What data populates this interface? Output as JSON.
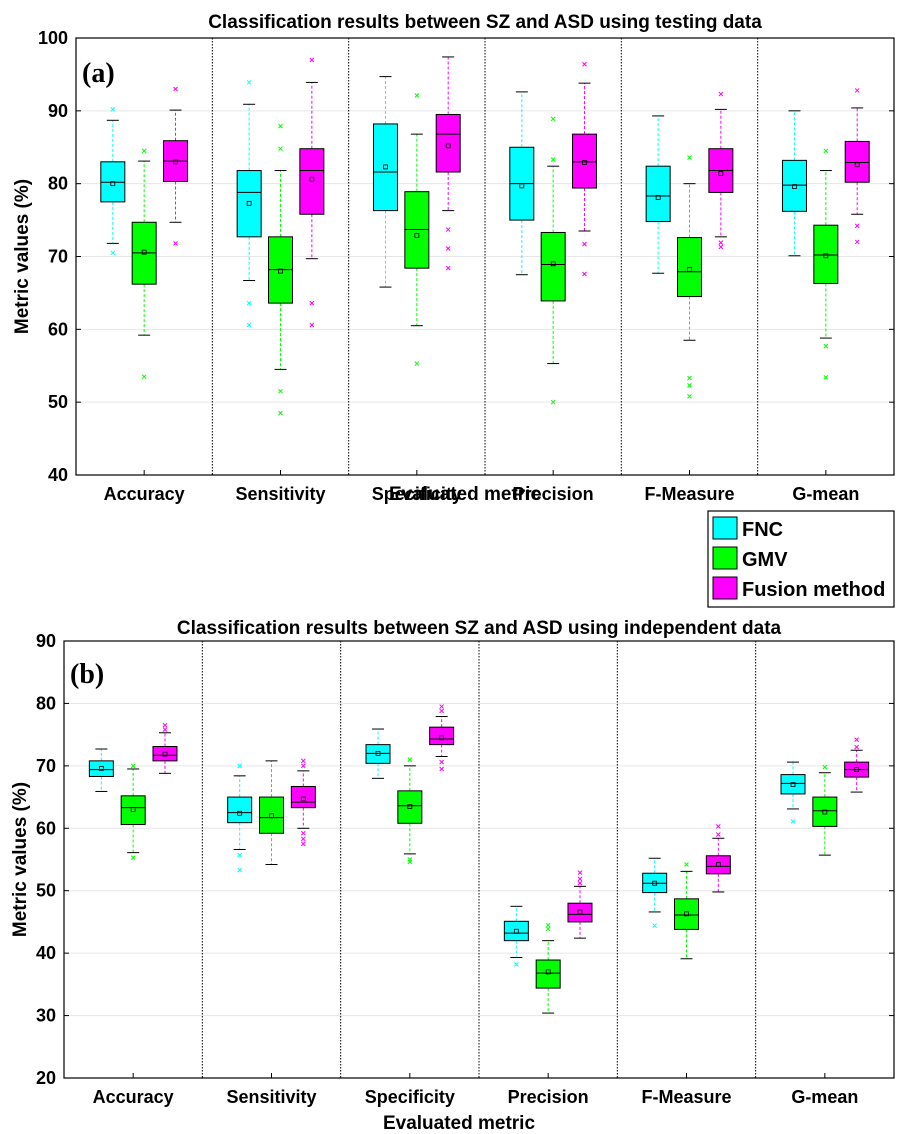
{
  "legend": {
    "entries": [
      {
        "name": "FNC",
        "color": "#00ffff"
      },
      {
        "name": "GMV",
        "color": "#00ff00"
      },
      {
        "name": "Fusion method",
        "color": "#ff00ff"
      }
    ],
    "placement": "between-panels-right"
  },
  "chart_data": [
    {
      "type": "box",
      "panel_label": "(a)",
      "title": "Classification results between SZ and ASD using testing data",
      "xlabel": "Evaluated metric",
      "ylabel": "Metric values (%)",
      "ylim": [
        40,
        100
      ],
      "yticks": [
        40,
        50,
        60,
        70,
        80,
        90,
        100
      ],
      "grid": "horizontal",
      "categories": [
        "Accuracy",
        "Sensitivity",
        "Specificity",
        "Precision",
        "F-Measure",
        "G-mean"
      ],
      "series": [
        {
          "name": "FNC",
          "color": "#00ffff",
          "boxes": [
            {
              "q1": 77.5,
              "median": 80.2,
              "q3": 83.0,
              "whisker_low": 71.8,
              "whisker_high": 88.7,
              "mean": 80.0,
              "outliers": [
                70.5,
                90.2
              ]
            },
            {
              "q1": 72.7,
              "median": 78.8,
              "q3": 81.8,
              "whisker_low": 66.7,
              "whisker_high": 90.9,
              "mean": 77.3,
              "outliers": [
                63.6,
                60.6,
                93.9
              ]
            },
            {
              "q1": 76.3,
              "median": 81.6,
              "q3": 88.2,
              "whisker_low": 65.8,
              "whisker_high": 94.7,
              "mean": 82.3,
              "outliers": []
            },
            {
              "q1": 75.0,
              "median": 80.0,
              "q3": 85.0,
              "whisker_low": 67.5,
              "whisker_high": 92.6,
              "mean": 79.7,
              "outliers": []
            },
            {
              "q1": 74.8,
              "median": 78.3,
              "q3": 82.4,
              "whisker_low": 67.7,
              "whisker_high": 89.3,
              "mean": 78.1,
              "outliers": []
            },
            {
              "q1": 76.2,
              "median": 79.8,
              "q3": 83.2,
              "whisker_low": 70.1,
              "whisker_high": 90.0,
              "mean": 79.6,
              "outliers": []
            }
          ]
        },
        {
          "name": "GMV",
          "color": "#00ff00",
          "boxes": [
            {
              "q1": 66.2,
              "median": 70.5,
              "q3": 74.7,
              "whisker_low": 59.2,
              "whisker_high": 83.1,
              "mean": 70.6,
              "outliers": [
                53.5,
                84.5
              ]
            },
            {
              "q1": 63.6,
              "median": 68.2,
              "q3": 72.7,
              "whisker_low": 54.5,
              "whisker_high": 81.8,
              "mean": 68.0,
              "outliers": [
                51.5,
                48.5,
                84.8,
                87.9
              ]
            },
            {
              "q1": 68.4,
              "median": 73.7,
              "q3": 78.9,
              "whisker_low": 60.5,
              "whisker_high": 86.8,
              "mean": 72.9,
              "outliers": [
                55.3,
                92.1
              ]
            },
            {
              "q1": 63.9,
              "median": 68.9,
              "q3": 73.3,
              "whisker_low": 55.3,
              "whisker_high": 82.4,
              "mean": 69.0,
              "outliers": [
                50.0,
                88.9,
                83.3
              ]
            },
            {
              "q1": 64.5,
              "median": 67.9,
              "q3": 72.6,
              "whisker_low": 58.5,
              "whisker_high": 80.0,
              "mean": 68.2,
              "outliers": [
                53.3,
                52.3,
                50.8,
                83.6
              ]
            },
            {
              "q1": 66.3,
              "median": 70.2,
              "q3": 74.3,
              "whisker_low": 58.8,
              "whisker_high": 81.8,
              "mean": 70.1,
              "outliers": [
                57.7,
                53.4,
                84.5
              ]
            }
          ]
        },
        {
          "name": "Fusion method",
          "color": "#ff00ff",
          "boxes": [
            {
              "q1": 80.3,
              "median": 83.1,
              "q3": 85.9,
              "whisker_low": 74.7,
              "whisker_high": 90.1,
              "mean": 83.0,
              "outliers": [
                71.8,
                93.0
              ]
            },
            {
              "q1": 75.8,
              "median": 81.8,
              "q3": 84.8,
              "whisker_low": 69.7,
              "whisker_high": 93.9,
              "mean": 80.6,
              "outliers": [
                63.6,
                60.6,
                97.0
              ]
            },
            {
              "q1": 81.6,
              "median": 86.8,
              "q3": 89.5,
              "whisker_low": 76.3,
              "whisker_high": 97.4,
              "mean": 85.2,
              "outliers": [
                73.7,
                71.1,
                68.4
              ]
            },
            {
              "q1": 79.4,
              "median": 83.0,
              "q3": 86.8,
              "whisker_low": 73.5,
              "whisker_high": 93.8,
              "mean": 82.9,
              "outliers": [
                71.7,
                67.6,
                96.4
              ]
            },
            {
              "q1": 78.8,
              "median": 81.8,
              "q3": 84.8,
              "whisker_low": 72.7,
              "whisker_high": 90.2,
              "mean": 81.4,
              "outliers": [
                71.9,
                71.3,
                92.3
              ]
            },
            {
              "q1": 80.2,
              "median": 82.9,
              "q3": 85.8,
              "whisker_low": 75.8,
              "whisker_high": 90.4,
              "mean": 82.6,
              "outliers": [
                74.2,
                72.0,
                92.8
              ]
            }
          ]
        }
      ]
    },
    {
      "type": "box",
      "panel_label": "(b)",
      "title": "Classification results between SZ and ASD using independent data",
      "xlabel": "Evaluated metric",
      "ylabel": "Metric values (%)",
      "ylim": [
        20,
        90
      ],
      "yticks": [
        20,
        30,
        40,
        50,
        60,
        70,
        80,
        90
      ],
      "grid": "horizontal",
      "categories": [
        "Accuracy",
        "Sensitivity",
        "Specificity",
        "Precision",
        "F-Measure",
        "G-mean"
      ],
      "series": [
        {
          "name": "FNC",
          "color": "#00ffff",
          "boxes": [
            {
              "q1": 68.3,
              "median": 69.4,
              "q3": 70.8,
              "whisker_low": 65.9,
              "whisker_high": 72.7,
              "mean": 69.6,
              "outliers": []
            },
            {
              "q1": 60.9,
              "median": 62.5,
              "q3": 65.0,
              "whisker_low": 56.6,
              "whisker_high": 68.4,
              "mean": 62.4,
              "outliers": [
                55.7,
                53.3,
                70.0
              ]
            },
            {
              "q1": 70.4,
              "median": 72.0,
              "q3": 73.4,
              "whisker_low": 68.0,
              "whisker_high": 75.9,
              "mean": 72.0,
              "outliers": []
            },
            {
              "q1": 42.0,
              "median": 43.2,
              "q3": 45.1,
              "whisker_low": 39.3,
              "whisker_high": 47.5,
              "mean": 43.5,
              "outliers": [
                38.2
              ]
            },
            {
              "q1": 49.7,
              "median": 51.2,
              "q3": 52.8,
              "whisker_low": 46.6,
              "whisker_high": 55.2,
              "mean": 51.2,
              "outliers": [
                44.4
              ]
            },
            {
              "q1": 65.5,
              "median": 67.2,
              "q3": 68.6,
              "whisker_low": 63.1,
              "whisker_high": 70.6,
              "mean": 67.0,
              "outliers": [
                61.1
              ]
            }
          ]
        },
        {
          "name": "GMV",
          "color": "#00ff00",
          "boxes": [
            {
              "q1": 60.6,
              "median": 63.3,
              "q3": 65.2,
              "whisker_low": 56.1,
              "whisker_high": 69.5,
              "mean": 63.0,
              "outliers": [
                55.3,
                70.0
              ]
            },
            {
              "q1": 59.2,
              "median": 61.7,
              "q3": 65.0,
              "whisker_low": 54.2,
              "whisker_high": 70.8,
              "mean": 62.0,
              "outliers": []
            },
            {
              "q1": 60.8,
              "median": 63.6,
              "q3": 66.0,
              "whisker_low": 55.9,
              "whisker_high": 70.0,
              "mean": 63.5,
              "outliers": [
                55.0,
                54.6,
                71.0
              ]
            },
            {
              "q1": 34.4,
              "median": 36.8,
              "q3": 38.9,
              "whisker_low": 30.4,
              "whisker_high": 42.0,
              "mean": 37.0,
              "outliers": [
                44.5,
                43.9
              ]
            },
            {
              "q1": 43.8,
              "median": 46.1,
              "q3": 48.7,
              "whisker_low": 39.1,
              "whisker_high": 53.1,
              "mean": 46.3,
              "outliers": [
                54.2
              ]
            },
            {
              "q1": 60.3,
              "median": 62.8,
              "q3": 65.0,
              "whisker_low": 55.7,
              "whisker_high": 68.9,
              "mean": 62.6,
              "outliers": [
                69.8
              ]
            }
          ]
        },
        {
          "name": "Fusion method",
          "color": "#ff00ff",
          "boxes": [
            {
              "q1": 70.8,
              "median": 71.7,
              "q3": 73.1,
              "whisker_low": 68.8,
              "whisker_high": 75.3,
              "mean": 71.9,
              "outliers": [
                76.5,
                75.8
              ]
            },
            {
              "q1": 63.3,
              "median": 64.2,
              "q3": 66.7,
              "whisker_low": 60.0,
              "whisker_high": 69.2,
              "mean": 64.7,
              "outliers": [
                58.3,
                57.5,
                59.2,
                70.8,
                70.0
              ]
            },
            {
              "q1": 73.4,
              "median": 74.3,
              "q3": 76.2,
              "whisker_low": 71.5,
              "whisker_high": 77.9,
              "mean": 74.5,
              "outliers": [
                70.6,
                69.5,
                79.5,
                78.8
              ]
            },
            {
              "q1": 45.0,
              "median": 46.2,
              "q3": 48.0,
              "whisker_low": 42.4,
              "whisker_high": 50.7,
              "mean": 46.6,
              "outliers": [
                52.9,
                51.9,
                51.2
              ]
            },
            {
              "q1": 52.7,
              "median": 53.9,
              "q3": 55.6,
              "whisker_low": 49.8,
              "whisker_high": 58.4,
              "mean": 54.2,
              "outliers": [
                60.3,
                59.0
              ]
            },
            {
              "q1": 68.2,
              "median": 69.4,
              "q3": 70.6,
              "whisker_low": 65.8,
              "whisker_high": 72.5,
              "mean": 69.4,
              "outliers": [
                74.2,
                73.0
              ]
            }
          ]
        }
      ]
    }
  ]
}
